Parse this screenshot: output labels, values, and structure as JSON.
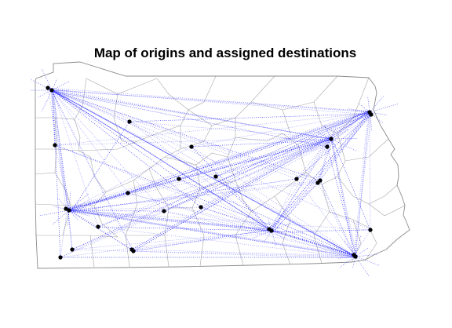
{
  "figure": {
    "title": "Map of origins and assigned destinations"
  },
  "colors": {
    "background": "#ffffff",
    "flow_lines": "#1a1aff",
    "points": "#000000",
    "county_borders": "#a8a8a8"
  },
  "map": {
    "region": "Pennsylvania",
    "layers": [
      "county-boundaries",
      "origin-destination-lines",
      "points"
    ],
    "line_style": "dotted"
  }
}
